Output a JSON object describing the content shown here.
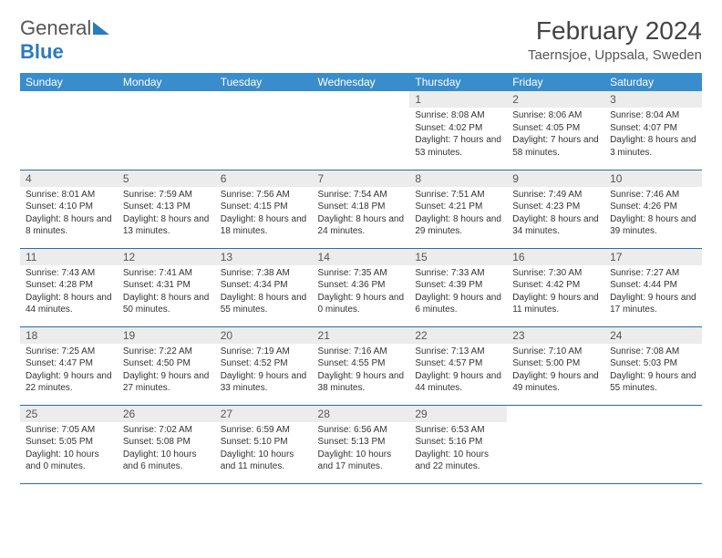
{
  "brand": {
    "part1": "General",
    "part2": "Blue"
  },
  "title": "February 2024",
  "location": "Taernsjoe, Uppsala, Sweden",
  "colors": {
    "header_bg": "#3a8dcd",
    "header_text": "#ffffff",
    "daynum_bg": "#ececec",
    "row_border": "#2b6ca3",
    "brand_blue": "#2b7bbd"
  },
  "weekdays": [
    "Sunday",
    "Monday",
    "Tuesday",
    "Wednesday",
    "Thursday",
    "Friday",
    "Saturday"
  ],
  "first_weekday_index": 4,
  "days": [
    {
      "n": 1,
      "sr": "8:08 AM",
      "ss": "4:02 PM",
      "dl": "7 hours and 53 minutes."
    },
    {
      "n": 2,
      "sr": "8:06 AM",
      "ss": "4:05 PM",
      "dl": "7 hours and 58 minutes."
    },
    {
      "n": 3,
      "sr": "8:04 AM",
      "ss": "4:07 PM",
      "dl": "8 hours and 3 minutes."
    },
    {
      "n": 4,
      "sr": "8:01 AM",
      "ss": "4:10 PM",
      "dl": "8 hours and 8 minutes."
    },
    {
      "n": 5,
      "sr": "7:59 AM",
      "ss": "4:13 PM",
      "dl": "8 hours and 13 minutes."
    },
    {
      "n": 6,
      "sr": "7:56 AM",
      "ss": "4:15 PM",
      "dl": "8 hours and 18 minutes."
    },
    {
      "n": 7,
      "sr": "7:54 AM",
      "ss": "4:18 PM",
      "dl": "8 hours and 24 minutes."
    },
    {
      "n": 8,
      "sr": "7:51 AM",
      "ss": "4:21 PM",
      "dl": "8 hours and 29 minutes."
    },
    {
      "n": 9,
      "sr": "7:49 AM",
      "ss": "4:23 PM",
      "dl": "8 hours and 34 minutes."
    },
    {
      "n": 10,
      "sr": "7:46 AM",
      "ss": "4:26 PM",
      "dl": "8 hours and 39 minutes."
    },
    {
      "n": 11,
      "sr": "7:43 AM",
      "ss": "4:28 PM",
      "dl": "8 hours and 44 minutes."
    },
    {
      "n": 12,
      "sr": "7:41 AM",
      "ss": "4:31 PM",
      "dl": "8 hours and 50 minutes."
    },
    {
      "n": 13,
      "sr": "7:38 AM",
      "ss": "4:34 PM",
      "dl": "8 hours and 55 minutes."
    },
    {
      "n": 14,
      "sr": "7:35 AM",
      "ss": "4:36 PM",
      "dl": "9 hours and 0 minutes."
    },
    {
      "n": 15,
      "sr": "7:33 AM",
      "ss": "4:39 PM",
      "dl": "9 hours and 6 minutes."
    },
    {
      "n": 16,
      "sr": "7:30 AM",
      "ss": "4:42 PM",
      "dl": "9 hours and 11 minutes."
    },
    {
      "n": 17,
      "sr": "7:27 AM",
      "ss": "4:44 PM",
      "dl": "9 hours and 17 minutes."
    },
    {
      "n": 18,
      "sr": "7:25 AM",
      "ss": "4:47 PM",
      "dl": "9 hours and 22 minutes."
    },
    {
      "n": 19,
      "sr": "7:22 AM",
      "ss": "4:50 PM",
      "dl": "9 hours and 27 minutes."
    },
    {
      "n": 20,
      "sr": "7:19 AM",
      "ss": "4:52 PM",
      "dl": "9 hours and 33 minutes."
    },
    {
      "n": 21,
      "sr": "7:16 AM",
      "ss": "4:55 PM",
      "dl": "9 hours and 38 minutes."
    },
    {
      "n": 22,
      "sr": "7:13 AM",
      "ss": "4:57 PM",
      "dl": "9 hours and 44 minutes."
    },
    {
      "n": 23,
      "sr": "7:10 AM",
      "ss": "5:00 PM",
      "dl": "9 hours and 49 minutes."
    },
    {
      "n": 24,
      "sr": "7:08 AM",
      "ss": "5:03 PM",
      "dl": "9 hours and 55 minutes."
    },
    {
      "n": 25,
      "sr": "7:05 AM",
      "ss": "5:05 PM",
      "dl": "10 hours and 0 minutes."
    },
    {
      "n": 26,
      "sr": "7:02 AM",
      "ss": "5:08 PM",
      "dl": "10 hours and 6 minutes."
    },
    {
      "n": 27,
      "sr": "6:59 AM",
      "ss": "5:10 PM",
      "dl": "10 hours and 11 minutes."
    },
    {
      "n": 28,
      "sr": "6:56 AM",
      "ss": "5:13 PM",
      "dl": "10 hours and 17 minutes."
    },
    {
      "n": 29,
      "sr": "6:53 AM",
      "ss": "5:16 PM",
      "dl": "10 hours and 22 minutes."
    }
  ],
  "labels": {
    "sunrise": "Sunrise:",
    "sunset": "Sunset:",
    "daylight": "Daylight:"
  }
}
